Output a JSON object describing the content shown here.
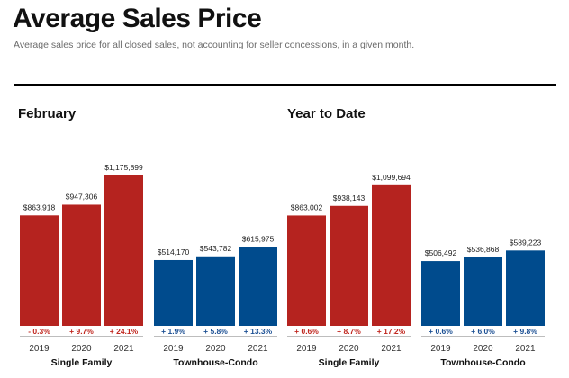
{
  "title": "Average Sales Price",
  "subtitle": "Average sales price for all closed sales, not accounting for seller concessions, in a given month.",
  "colors": {
    "single_family": "#b5231f",
    "townhouse_condo": "#004b8d",
    "change_red": "#c0271f",
    "change_blue": "#1b4f93"
  },
  "chart_data": [
    {
      "type": "bar",
      "title": "February",
      "groups": [
        {
          "name": "Single Family",
          "categories": [
            "2019",
            "2020",
            "2021"
          ],
          "values": [
            863918,
            947306,
            1175899
          ],
          "value_labels": [
            "$863,918",
            "$947,306",
            "$1,175,899"
          ],
          "changes": [
            "- 0.3%",
            "+ 9.7%",
            "+ 24.1%"
          ]
        },
        {
          "name": "Townhouse-Condo",
          "categories": [
            "2019",
            "2020",
            "2021"
          ],
          "values": [
            514170,
            543782,
            615975
          ],
          "value_labels": [
            "$514,170",
            "$543,782",
            "$615,975"
          ],
          "changes": [
            "+ 1.9%",
            "+ 5.8%",
            "+ 13.3%"
          ]
        }
      ]
    },
    {
      "type": "bar",
      "title": "Year to Date",
      "groups": [
        {
          "name": "Single Family",
          "categories": [
            "2019",
            "2020",
            "2021"
          ],
          "values": [
            863002,
            938143,
            1099694
          ],
          "value_labels": [
            "$863,002",
            "$938,143",
            "$1,099,694"
          ],
          "changes": [
            "+ 0.6%",
            "+ 8.7%",
            "+ 17.2%"
          ]
        },
        {
          "name": "Townhouse-Condo",
          "categories": [
            "2019",
            "2020",
            "2021"
          ],
          "values": [
            506492,
            536868,
            589223
          ],
          "value_labels": [
            "$506,492",
            "$536,868",
            "$589,223"
          ],
          "changes": [
            "+ 0.6%",
            "+ 6.0%",
            "+ 9.8%"
          ]
        }
      ]
    }
  ]
}
